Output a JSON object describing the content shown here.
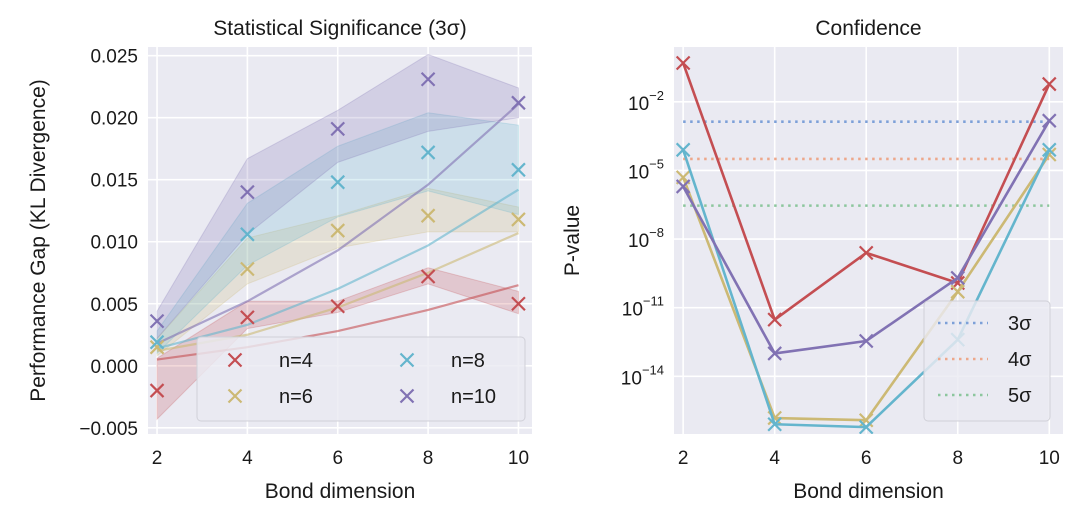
{
  "chart_data": [
    {
      "type": "scatter",
      "title": "Statistical Significance (3σ)",
      "xlabel": "Bond dimension",
      "ylabel": "Performance Gap (KL Divergence)",
      "xlim": [
        1.8,
        10.3
      ],
      "ylim": [
        -0.0055,
        0.0257
      ],
      "xticks": [
        2,
        4,
        6,
        8,
        10
      ],
      "xtick_labels": [
        "2",
        "4",
        "6",
        "8",
        "10"
      ],
      "yticks": [
        -0.005,
        0,
        0.005,
        0.01,
        0.015,
        0.02,
        0.025
      ],
      "ytick_labels": [
        "−0.005",
        "0.000",
        "0.005",
        "0.010",
        "0.015",
        "0.020",
        "0.025"
      ],
      "grid": true,
      "legend": {
        "placement": "lower-right",
        "columns": 2
      },
      "series": [
        {
          "name": "n=4",
          "color": "#c44e52",
          "marker": "x",
          "x": [
            2,
            4,
            6,
            8,
            10
          ],
          "values": [
            -0.002,
            0.0039,
            0.0048,
            0.0072,
            0.005
          ],
          "band_upper": [
            0.0006,
            0.0052,
            0.0052,
            0.0079,
            0.006
          ],
          "band_lower": [
            -0.0043,
            0.003,
            0.0043,
            0.0066,
            0.0042
          ],
          "fit": [
            0.0005,
            0.0015,
            0.0028,
            0.0045,
            0.0065
          ]
        },
        {
          "name": "n=6",
          "color": "#ccb974",
          "marker": "x",
          "x": [
            2,
            4,
            6,
            8,
            10
          ],
          "values": [
            0.0015,
            0.0078,
            0.0109,
            0.0121,
            0.0118
          ],
          "band_upper": [
            0.0022,
            0.0103,
            0.0121,
            0.0143,
            0.0128
          ],
          "band_lower": [
            0.0008,
            0.0066,
            0.0095,
            0.0108,
            0.0108
          ],
          "fit": [
            0.0012,
            0.0025,
            0.0047,
            0.0075,
            0.0107
          ]
        },
        {
          "name": "n=8",
          "color": "#64b5cd",
          "marker": "x",
          "x": [
            2,
            4,
            6,
            8,
            10
          ],
          "values": [
            0.0019,
            0.0106,
            0.0148,
            0.0172,
            0.0158
          ],
          "band_upper": [
            0.0028,
            0.0131,
            0.0177,
            0.0204,
            0.0194
          ],
          "band_lower": [
            0.001,
            0.0081,
            0.012,
            0.0141,
            0.0122
          ],
          "fit": [
            0.0014,
            0.0033,
            0.0062,
            0.0097,
            0.0142
          ]
        },
        {
          "name": "n=10",
          "color": "#8172b3",
          "marker": "x",
          "x": [
            2,
            4,
            6,
            8,
            10
          ],
          "values": [
            0.0036,
            0.014,
            0.0191,
            0.0231,
            0.0212
          ],
          "band_upper": [
            0.0044,
            0.0167,
            0.0206,
            0.0251,
            0.0224
          ],
          "band_lower": [
            0.0022,
            0.0106,
            0.0164,
            0.0189,
            0.02
          ],
          "fit": [
            0.0018,
            0.0052,
            0.0093,
            0.0146,
            0.0211
          ]
        }
      ]
    },
    {
      "type": "line",
      "title": "Confidence",
      "xlabel": "Bond dimension",
      "ylabel": "P-value",
      "yscale": "log",
      "xlim": [
        1.8,
        10.3
      ],
      "ylim": [
        3e-17,
        2.5
      ],
      "xticks": [
        2,
        4,
        6,
        8,
        10
      ],
      "xtick_labels": [
        "2",
        "4",
        "6",
        "8",
        "10"
      ],
      "yticks": [
        1e-14,
        1e-11,
        1e-08,
        1e-05,
        0.01
      ],
      "ytick_labels": [
        {
          "base": "10",
          "exp": "−14"
        },
        {
          "base": "10",
          "exp": "−11"
        },
        {
          "base": "10",
          "exp": "−8"
        },
        {
          "base": "10",
          "exp": "−5"
        },
        {
          "base": "10",
          "exp": "−2"
        }
      ],
      "grid": true,
      "legend": {
        "placement": "lower-right",
        "columns": 1
      },
      "series": [
        {
          "color": "#c44e52",
          "marker": "x",
          "x": [
            2,
            4,
            6,
            8,
            10
          ],
          "values": [
            0.5,
            3e-12,
            2.5e-09,
            1.2e-10,
            0.06
          ]
        },
        {
          "color": "#ccb974",
          "marker": "x",
          "x": [
            2,
            4,
            6,
            8,
            10
          ],
          "values": [
            5e-06,
            1.5e-16,
            1.2e-16,
            5e-11,
            5e-05
          ]
        },
        {
          "color": "#64b5cd",
          "marker": "x",
          "x": [
            2,
            4,
            6,
            8,
            10
          ],
          "values": [
            8e-05,
            8e-17,
            6e-17,
            4e-13,
            8e-05
          ]
        },
        {
          "color": "#8172b3",
          "marker": "x",
          "x": [
            2,
            4,
            6,
            8,
            10
          ],
          "values": [
            2e-06,
            1e-13,
            3.5e-13,
            2e-10,
            0.0015
          ]
        }
      ],
      "thresholds": [
        {
          "name": "3σ",
          "value": 0.00135,
          "color": "#7da0d8"
        },
        {
          "name": "4σ",
          "value": 3.2e-05,
          "color": "#eda78a"
        },
        {
          "name": "5σ",
          "value": 2.9e-07,
          "color": "#8cc69d"
        }
      ]
    }
  ]
}
